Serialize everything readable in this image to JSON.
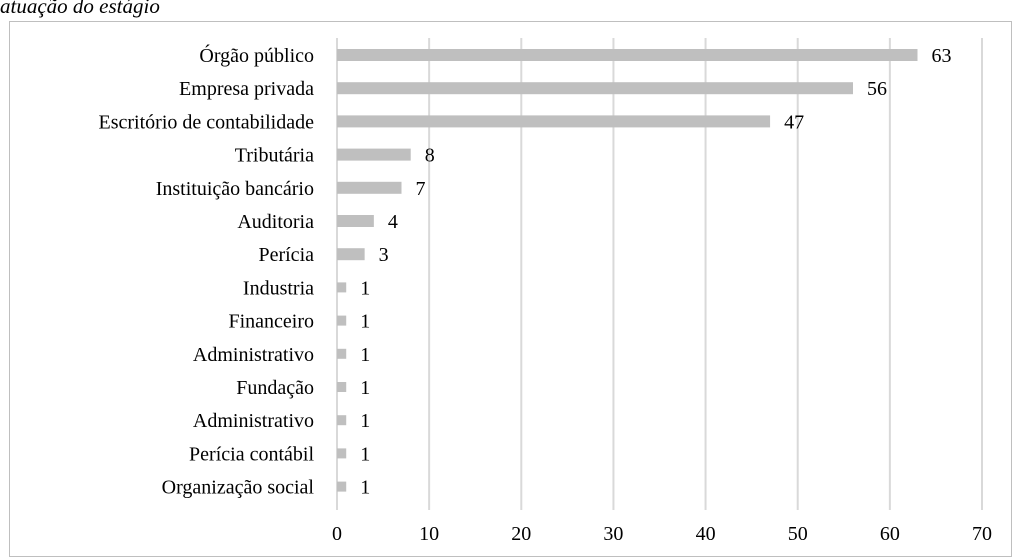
{
  "caption": "atuação do estágio",
  "chart_data": {
    "type": "bar",
    "orientation": "horizontal",
    "categories": [
      "Órgão público",
      "Empresa privada",
      "Escritório de contabilidade",
      "Tributária",
      "Instituição bancário",
      "Auditoria",
      "Perícia",
      "Industria",
      "Financeiro",
      "Administrativo",
      "Fundação",
      "Administrativo",
      "Perícia contábil",
      "Organização social"
    ],
    "values": [
      63,
      56,
      47,
      8,
      7,
      4,
      3,
      1,
      1,
      1,
      1,
      1,
      1,
      1
    ],
    "title": "",
    "xlabel": "",
    "ylabel": "",
    "xlim": [
      0,
      70
    ],
    "xticks": [
      0,
      10,
      20,
      30,
      40,
      50,
      60,
      70
    ],
    "grid": "vertical",
    "legend": "none",
    "bar_color": "#bfbfbf",
    "grid_color": "#d9d9d9"
  }
}
